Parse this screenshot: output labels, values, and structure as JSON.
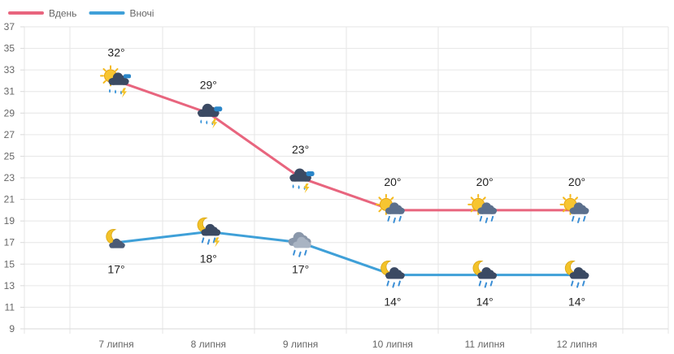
{
  "chart_data": {
    "type": "line",
    "title": "",
    "xlabel": "",
    "ylabel": "",
    "categories": [
      "7 липня",
      "8 липня",
      "9 липня",
      "10 липня",
      "11 липня",
      "12 липня"
    ],
    "ylim": [
      9,
      37
    ],
    "yticks": [
      9,
      11,
      13,
      15,
      17,
      19,
      21,
      23,
      25,
      27,
      29,
      31,
      33,
      35,
      37
    ],
    "grid": true,
    "legend_position": "top-left",
    "series": [
      {
        "name": "Вдень",
        "color": "#e8657e",
        "values": [
          32,
          29,
          23,
          20,
          20,
          20
        ],
        "labels": [
          "32°",
          "29°",
          "23°",
          "20°",
          "20°",
          "20°"
        ],
        "icons": [
          "partly-sunny-thunderstorm-icon",
          "thunderstorm-rain-icon",
          "thunderstorm-rain-icon",
          "partly-sunny-rain-icon",
          "partly-sunny-rain-icon",
          "partly-sunny-rain-icon"
        ]
      },
      {
        "name": "Вночі",
        "color": "#3fa0d8",
        "values": [
          17,
          18,
          17,
          14,
          14,
          14
        ],
        "labels": [
          "17°",
          "18°",
          "17°",
          "14°",
          "14°",
          "14°"
        ],
        "icons": [
          "night-cloudy-icon",
          "night-thunderstorm-icon",
          "overcast-rain-icon",
          "night-rain-icon",
          "night-rain-icon",
          "night-rain-icon"
        ]
      }
    ]
  }
}
